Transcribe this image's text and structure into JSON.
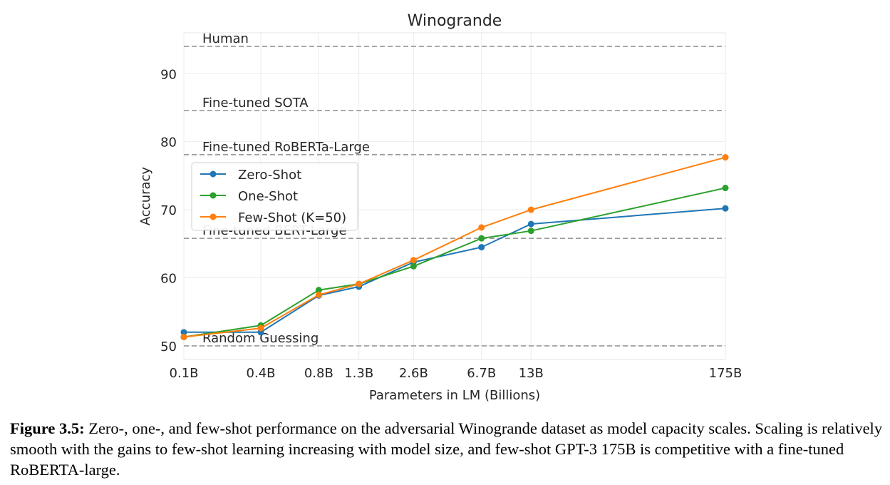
{
  "chart_data": {
    "type": "line",
    "title": "Winogrande",
    "xlabel": "Parameters in LM (Billions)",
    "ylabel": "Accuracy",
    "x_scale": "log",
    "categories": [
      "0.1B",
      "0.4B",
      "0.8B",
      "1.3B",
      "2.6B",
      "6.7B",
      "13B",
      "175B"
    ],
    "x": [
      0.125,
      0.35,
      0.76,
      1.3,
      2.7,
      6.7,
      13,
      175
    ],
    "ylim": [
      48,
      96
    ],
    "yticks": [
      50,
      60,
      70,
      80,
      90
    ],
    "ytick_labels": [
      "50",
      "60",
      "70",
      "80",
      "90"
    ],
    "grid": true,
    "legend_position": "upper-left",
    "series": [
      {
        "name": "Zero-Shot",
        "color": "#1f77b4",
        "values": [
          52.0,
          52.0,
          57.4,
          58.7,
          62.3,
          64.5,
          67.9,
          70.2
        ]
      },
      {
        "name": "One-Shot",
        "color": "#2ca02c",
        "values": [
          51.3,
          53.0,
          58.2,
          59.1,
          61.7,
          65.8,
          66.9,
          73.2
        ]
      },
      {
        "name": "Few-Shot (K=50)",
        "color": "#ff7f0e",
        "values": [
          51.3,
          52.6,
          57.5,
          59.1,
          62.6,
          67.4,
          70.0,
          77.7
        ]
      }
    ],
    "reference_lines": [
      {
        "label": "Human",
        "value": 94.0
      },
      {
        "label": "Fine-tuned SOTA",
        "value": 84.6
      },
      {
        "label": "Fine-tuned RoBERTa-Large",
        "value": 78.1
      },
      {
        "label": "Fine-tuned BERT-Large",
        "value": 65.8
      },
      {
        "label": "Random Guessing",
        "value": 50.0
      }
    ]
  },
  "caption": {
    "label": "Figure 3.5:",
    "text": "Zero-, one-, and few-shot performance on the adversarial Winogrande dataset as model capacity scales. Scaling is relatively smooth with the gains to few-shot learning increasing with model size, and few-shot GPT-3 175B is competitive with a fine-tuned RoBERTA-large."
  }
}
